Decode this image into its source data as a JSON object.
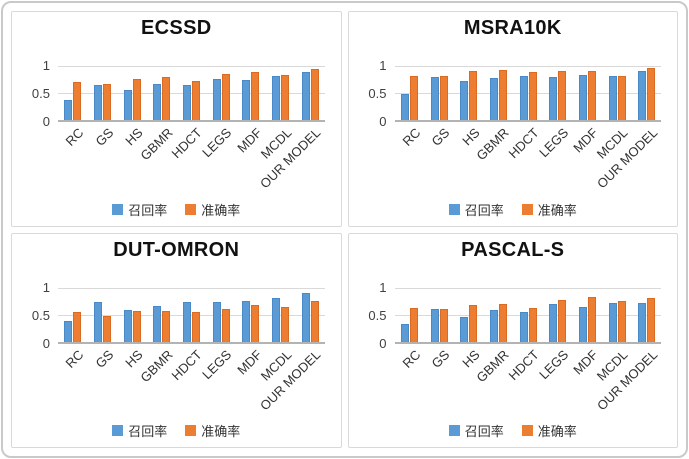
{
  "page": {
    "outer_border_color": "#c9c9c9",
    "panel_border_color": "#d9d9d9",
    "gridline_color": "#d9d9d9",
    "axis_color": "#b3b3b3",
    "text_color": "#404040"
  },
  "chart_data": [
    {
      "type": "bar",
      "title": "ECSSD",
      "categories": [
        "RC",
        "GS",
        "HS",
        "GBMR",
        "HDCT",
        "LEGS",
        "MDF",
        "MCDL",
        "OUR MODEL"
      ],
      "series": [
        {
          "name": "召回率",
          "color": "#5B9BD5",
          "border_color": "#4a89c8",
          "values": [
            0.35,
            0.63,
            0.53,
            0.64,
            0.62,
            0.73,
            0.72,
            0.79,
            0.86
          ]
        },
        {
          "name": "准确率",
          "color": "#ED7D31",
          "border_color": "#d96c22",
          "values": [
            0.67,
            0.64,
            0.74,
            0.77,
            0.69,
            0.83,
            0.85,
            0.81,
            0.91
          ]
        }
      ],
      "ylim": [
        0,
        1
      ],
      "yticks": [
        "1",
        "0.5",
        "0"
      ],
      "grid": true,
      "legend_position": "bottom"
    },
    {
      "type": "bar",
      "title": "MSRA10K",
      "categories": [
        "RC",
        "GS",
        "HS",
        "GBMR",
        "HDCT",
        "LEGS",
        "MDF",
        "MCDL",
        "OUR MODEL"
      ],
      "series": [
        {
          "name": "召回率",
          "color": "#5B9BD5",
          "border_color": "#4a89c8",
          "values": [
            0.47,
            0.77,
            0.7,
            0.75,
            0.78,
            0.77,
            0.8,
            0.78,
            0.88
          ]
        },
        {
          "name": "准确率",
          "color": "#ED7D31",
          "border_color": "#d96c22",
          "values": [
            0.78,
            0.79,
            0.88,
            0.89,
            0.85,
            0.87,
            0.87,
            0.79,
            0.93
          ]
        }
      ],
      "ylim": [
        0,
        1
      ],
      "yticks": [
        "1",
        "0.5",
        "0"
      ],
      "grid": true,
      "legend_position": "bottom"
    },
    {
      "type": "bar",
      "title": "DUT-OMRON",
      "categories": [
        "RC",
        "GS",
        "HS",
        "GBMR",
        "HDCT",
        "LEGS",
        "MDF",
        "MCDL",
        "OUR MODEL"
      ],
      "series": [
        {
          "name": "召回率",
          "color": "#5B9BD5",
          "border_color": "#4a89c8",
          "values": [
            0.37,
            0.71,
            0.57,
            0.64,
            0.7,
            0.71,
            0.72,
            0.78,
            0.87
          ]
        },
        {
          "name": "准确率",
          "color": "#ED7D31",
          "border_color": "#d96c22",
          "values": [
            0.52,
            0.46,
            0.55,
            0.55,
            0.53,
            0.58,
            0.66,
            0.61,
            0.73
          ]
        }
      ],
      "ylim": [
        0,
        1
      ],
      "yticks": [
        "1",
        "0.5",
        "0"
      ],
      "grid": true,
      "legend_position": "bottom"
    },
    {
      "type": "bar",
      "title": "PASCAL-S",
      "categories": [
        "RC",
        "GS",
        "HS",
        "GBMR",
        "HDCT",
        "LEGS",
        "MDF",
        "MCDL",
        "OUR MODEL"
      ],
      "series": [
        {
          "name": "召回率",
          "color": "#5B9BD5",
          "border_color": "#4a89c8",
          "values": [
            0.31,
            0.58,
            0.44,
            0.57,
            0.53,
            0.67,
            0.61,
            0.69,
            0.68
          ]
        },
        {
          "name": "准确率",
          "color": "#ED7D31",
          "border_color": "#d96c22",
          "values": [
            0.59,
            0.58,
            0.66,
            0.67,
            0.59,
            0.75,
            0.79,
            0.73,
            0.78
          ]
        }
      ],
      "ylim": [
        0,
        1
      ],
      "yticks": [
        "1",
        "0.5",
        "0"
      ],
      "grid": true,
      "legend_position": "bottom"
    }
  ]
}
